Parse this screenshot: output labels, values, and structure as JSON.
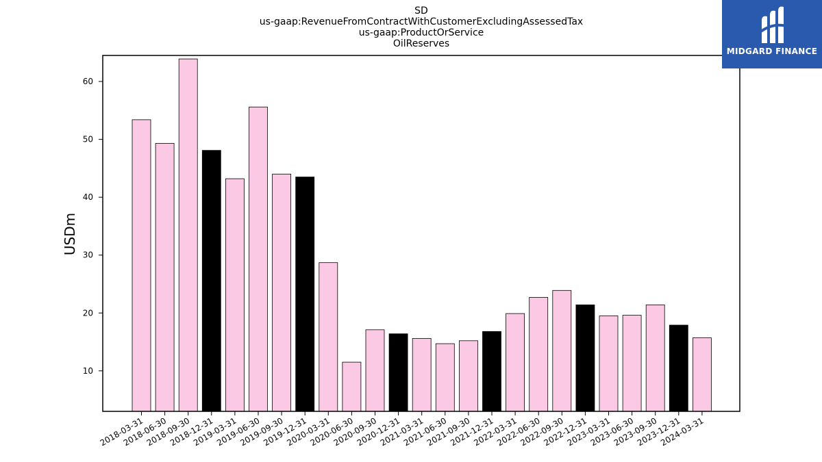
{
  "chart_data": {
    "type": "bar",
    "title_lines": [
      "SD",
      "us-gaap:RevenueFromContractWithCustomerExcludingAssessedTax",
      "us-gaap:ProductOrService",
      "OilReserves"
    ],
    "xlabel": "",
    "ylabel": "USDm",
    "ylim": [
      3,
      64.5
    ],
    "yticks": [
      10,
      20,
      30,
      40,
      50,
      60
    ],
    "grid": false,
    "legend": "none",
    "categories": [
      "2018-03-31",
      "2018-06-30",
      "2018-09-30",
      "2018-12-31",
      "2019-03-31",
      "2019-06-30",
      "2019-09-30",
      "2019-12-31",
      "2020-03-31",
      "2020-06-30",
      "2020-09-30",
      "2020-12-31",
      "2021-03-31",
      "2021-06-30",
      "2021-09-30",
      "2021-12-31",
      "2022-03-31",
      "2022-06-30",
      "2022-09-30",
      "2022-12-31",
      "2023-03-31",
      "2023-06-30",
      "2023-09-30",
      "2023-12-31",
      "2024-03-31"
    ],
    "values": [
      53.4,
      49.3,
      63.9,
      48.1,
      43.2,
      55.6,
      44.0,
      43.5,
      28.7,
      11.5,
      17.1,
      16.4,
      15.6,
      14.7,
      15.2,
      16.8,
      19.9,
      22.7,
      23.9,
      21.4,
      19.5,
      19.6,
      21.4,
      17.9,
      15.7
    ],
    "highlight": [
      false,
      false,
      false,
      true,
      false,
      false,
      false,
      true,
      false,
      false,
      false,
      true,
      false,
      false,
      false,
      true,
      false,
      false,
      false,
      true,
      false,
      false,
      false,
      true,
      false
    ],
    "colors": {
      "bar": "#fcc9e4",
      "highlight": "#000000",
      "edge": "#000000"
    }
  },
  "logo": {
    "text": "MIDGARD FINANCE",
    "background": "#2a5aad"
  }
}
